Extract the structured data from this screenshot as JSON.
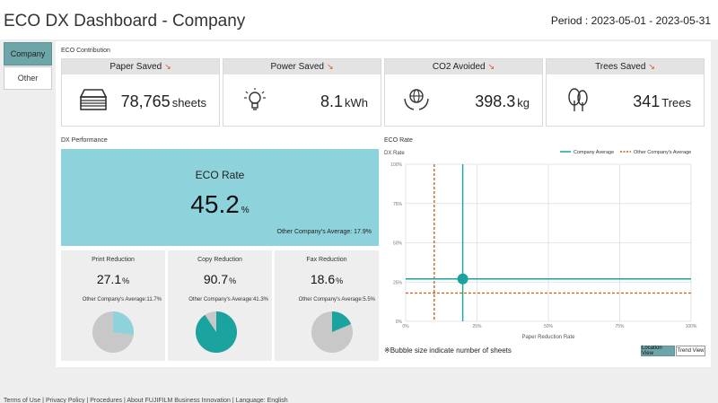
{
  "header": {
    "title": "ECO DX Dashboard - Company",
    "period": "Period : 2023-05-01 - 2023-05-31"
  },
  "sidebar": {
    "items": [
      {
        "label": "Company",
        "active": true
      },
      {
        "label": "Other",
        "active": false
      }
    ]
  },
  "eco_contribution": {
    "label": "ECO Contribution",
    "cards": [
      {
        "title": "Paper Saved",
        "icon": "paper-stack-icon",
        "value": "78,765",
        "unit": "sheets"
      },
      {
        "title": "Power Saved",
        "icon": "lightbulb-icon",
        "value": "8.1",
        "unit": "kWh"
      },
      {
        "title": "CO2 Avoided",
        "icon": "globe-hands-icon",
        "value": "398.3",
        "unit": "kg"
      },
      {
        "title": "Trees Saved",
        "icon": "tree-icon",
        "value": "341",
        "unit": "Trees"
      }
    ],
    "trend_arrow": "↘"
  },
  "dx_performance": {
    "label": "DX Performance",
    "eco_rate": {
      "title": "ECO Rate",
      "value": "45.2",
      "unit": "%",
      "other_avg": "Other Company's Average: 17.9%"
    },
    "subs": [
      {
        "title": "Print Reduction",
        "value": "27.1",
        "unit": "%",
        "other_avg": "Other Company's Average:11.7%",
        "fraction": 0.271
      },
      {
        "title": "Copy Reduction",
        "value": "90.7",
        "unit": "%",
        "other_avg": "Other Company's Average:41.3%",
        "fraction": 0.907
      },
      {
        "title": "Fax Reduction",
        "value": "18.6",
        "unit": "%",
        "other_avg": "Other Company's Average:5.5%",
        "fraction": 0.186
      }
    ]
  },
  "eco_rate_chart": {
    "label": "ECO Rate",
    "buttons": {
      "location": "Location View",
      "trend": "Trend View"
    },
    "bubble_note": "※Bubble size indicate number of sheets"
  },
  "chart_data": {
    "type": "scatter",
    "title": "ECO Rate",
    "xlabel": "Paper Reduction Rate",
    "ylabel": "DX Rate",
    "xlim": [
      0,
      100
    ],
    "ylim": [
      0,
      100
    ],
    "x_ticks": [
      "0%",
      "25%",
      "50%",
      "75%",
      "100%"
    ],
    "y_ticks": [
      "0%",
      "25%",
      "50%",
      "75%",
      "100%"
    ],
    "legend": [
      "Company Average",
      "Other Company's Average"
    ],
    "company_average": {
      "x": 20,
      "y": 27
    },
    "other_average": {
      "x": 10,
      "y": 18
    },
    "points": [
      {
        "x": 20,
        "y": 27
      }
    ]
  },
  "footer": {
    "text": "Terms of Use  |  Privacy Policy  |  Procedures  |  About FUJIFILM Business Innovation  |  Language: English"
  },
  "colors": {
    "accent": "#1aa39f",
    "eco_panel": "#8ed3dc",
    "trend_down": "#d9541e",
    "other_avg_line": "#c0601a",
    "pie_gray": "#c8c8c8"
  }
}
